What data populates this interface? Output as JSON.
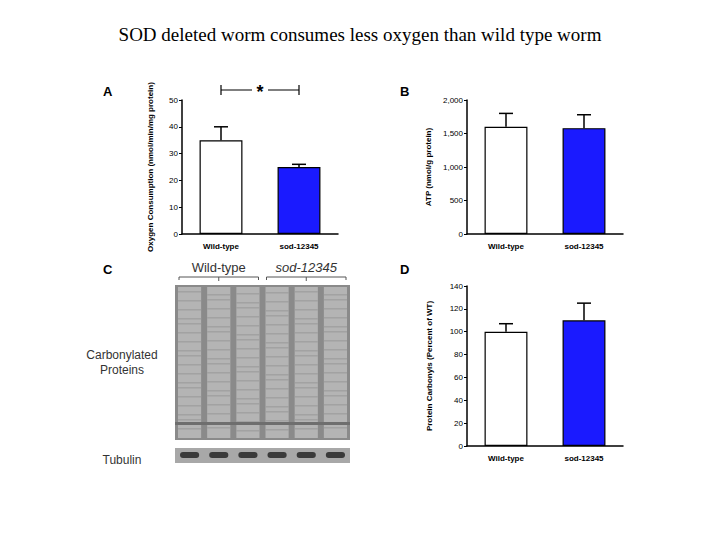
{
  "title": "SOD deleted worm consumes less oxygen than wild type worm",
  "chart_data": [
    {
      "panel": "A",
      "type": "bar",
      "categories": [
        "Wild-type",
        "sod-12345"
      ],
      "values": [
        35,
        25
      ],
      "errors": [
        5,
        1
      ],
      "colors": [
        "#ffffff",
        "#1a1aff"
      ],
      "y_label": "Oxygen Consumption (nmol/min/mg protein)",
      "ylim": [
        0,
        50
      ],
      "yticks": [
        0,
        10,
        20,
        30,
        40,
        50
      ],
      "annotations": [
        "*"
      ],
      "grid": false
    },
    {
      "panel": "B",
      "type": "bar",
      "categories": [
        "Wild-type",
        "sod-12345"
      ],
      "values": [
        1600,
        1580
      ],
      "errors": [
        200,
        200
      ],
      "colors": [
        "#ffffff",
        "#1a1aff"
      ],
      "y_label": "ATP (nmol/g protein)",
      "ylim": [
        0,
        2000
      ],
      "yticks": [
        0,
        500,
        1000,
        1500,
        2000
      ],
      "grid": false
    },
    {
      "panel": "D",
      "type": "bar",
      "categories": [
        "Wild-type",
        "sod-12345"
      ],
      "values": [
        100,
        110
      ],
      "errors": [
        7,
        15
      ],
      "colors": [
        "#ffffff",
        "#1a1aff"
      ],
      "y_label": "Protein Carbonyls (Percent of WT)",
      "ylim": [
        0,
        140
      ],
      "yticks": [
        0,
        20,
        40,
        60,
        80,
        100,
        120,
        140
      ],
      "grid": false
    }
  ],
  "blot": {
    "panel": "C",
    "groups": [
      {
        "label": "Wild-type",
        "lanes": 3
      },
      {
        "label": "sod-12345",
        "lanes": 3
      }
    ],
    "rows": [
      "Carbonylated Proteins",
      "Tubulin"
    ]
  }
}
